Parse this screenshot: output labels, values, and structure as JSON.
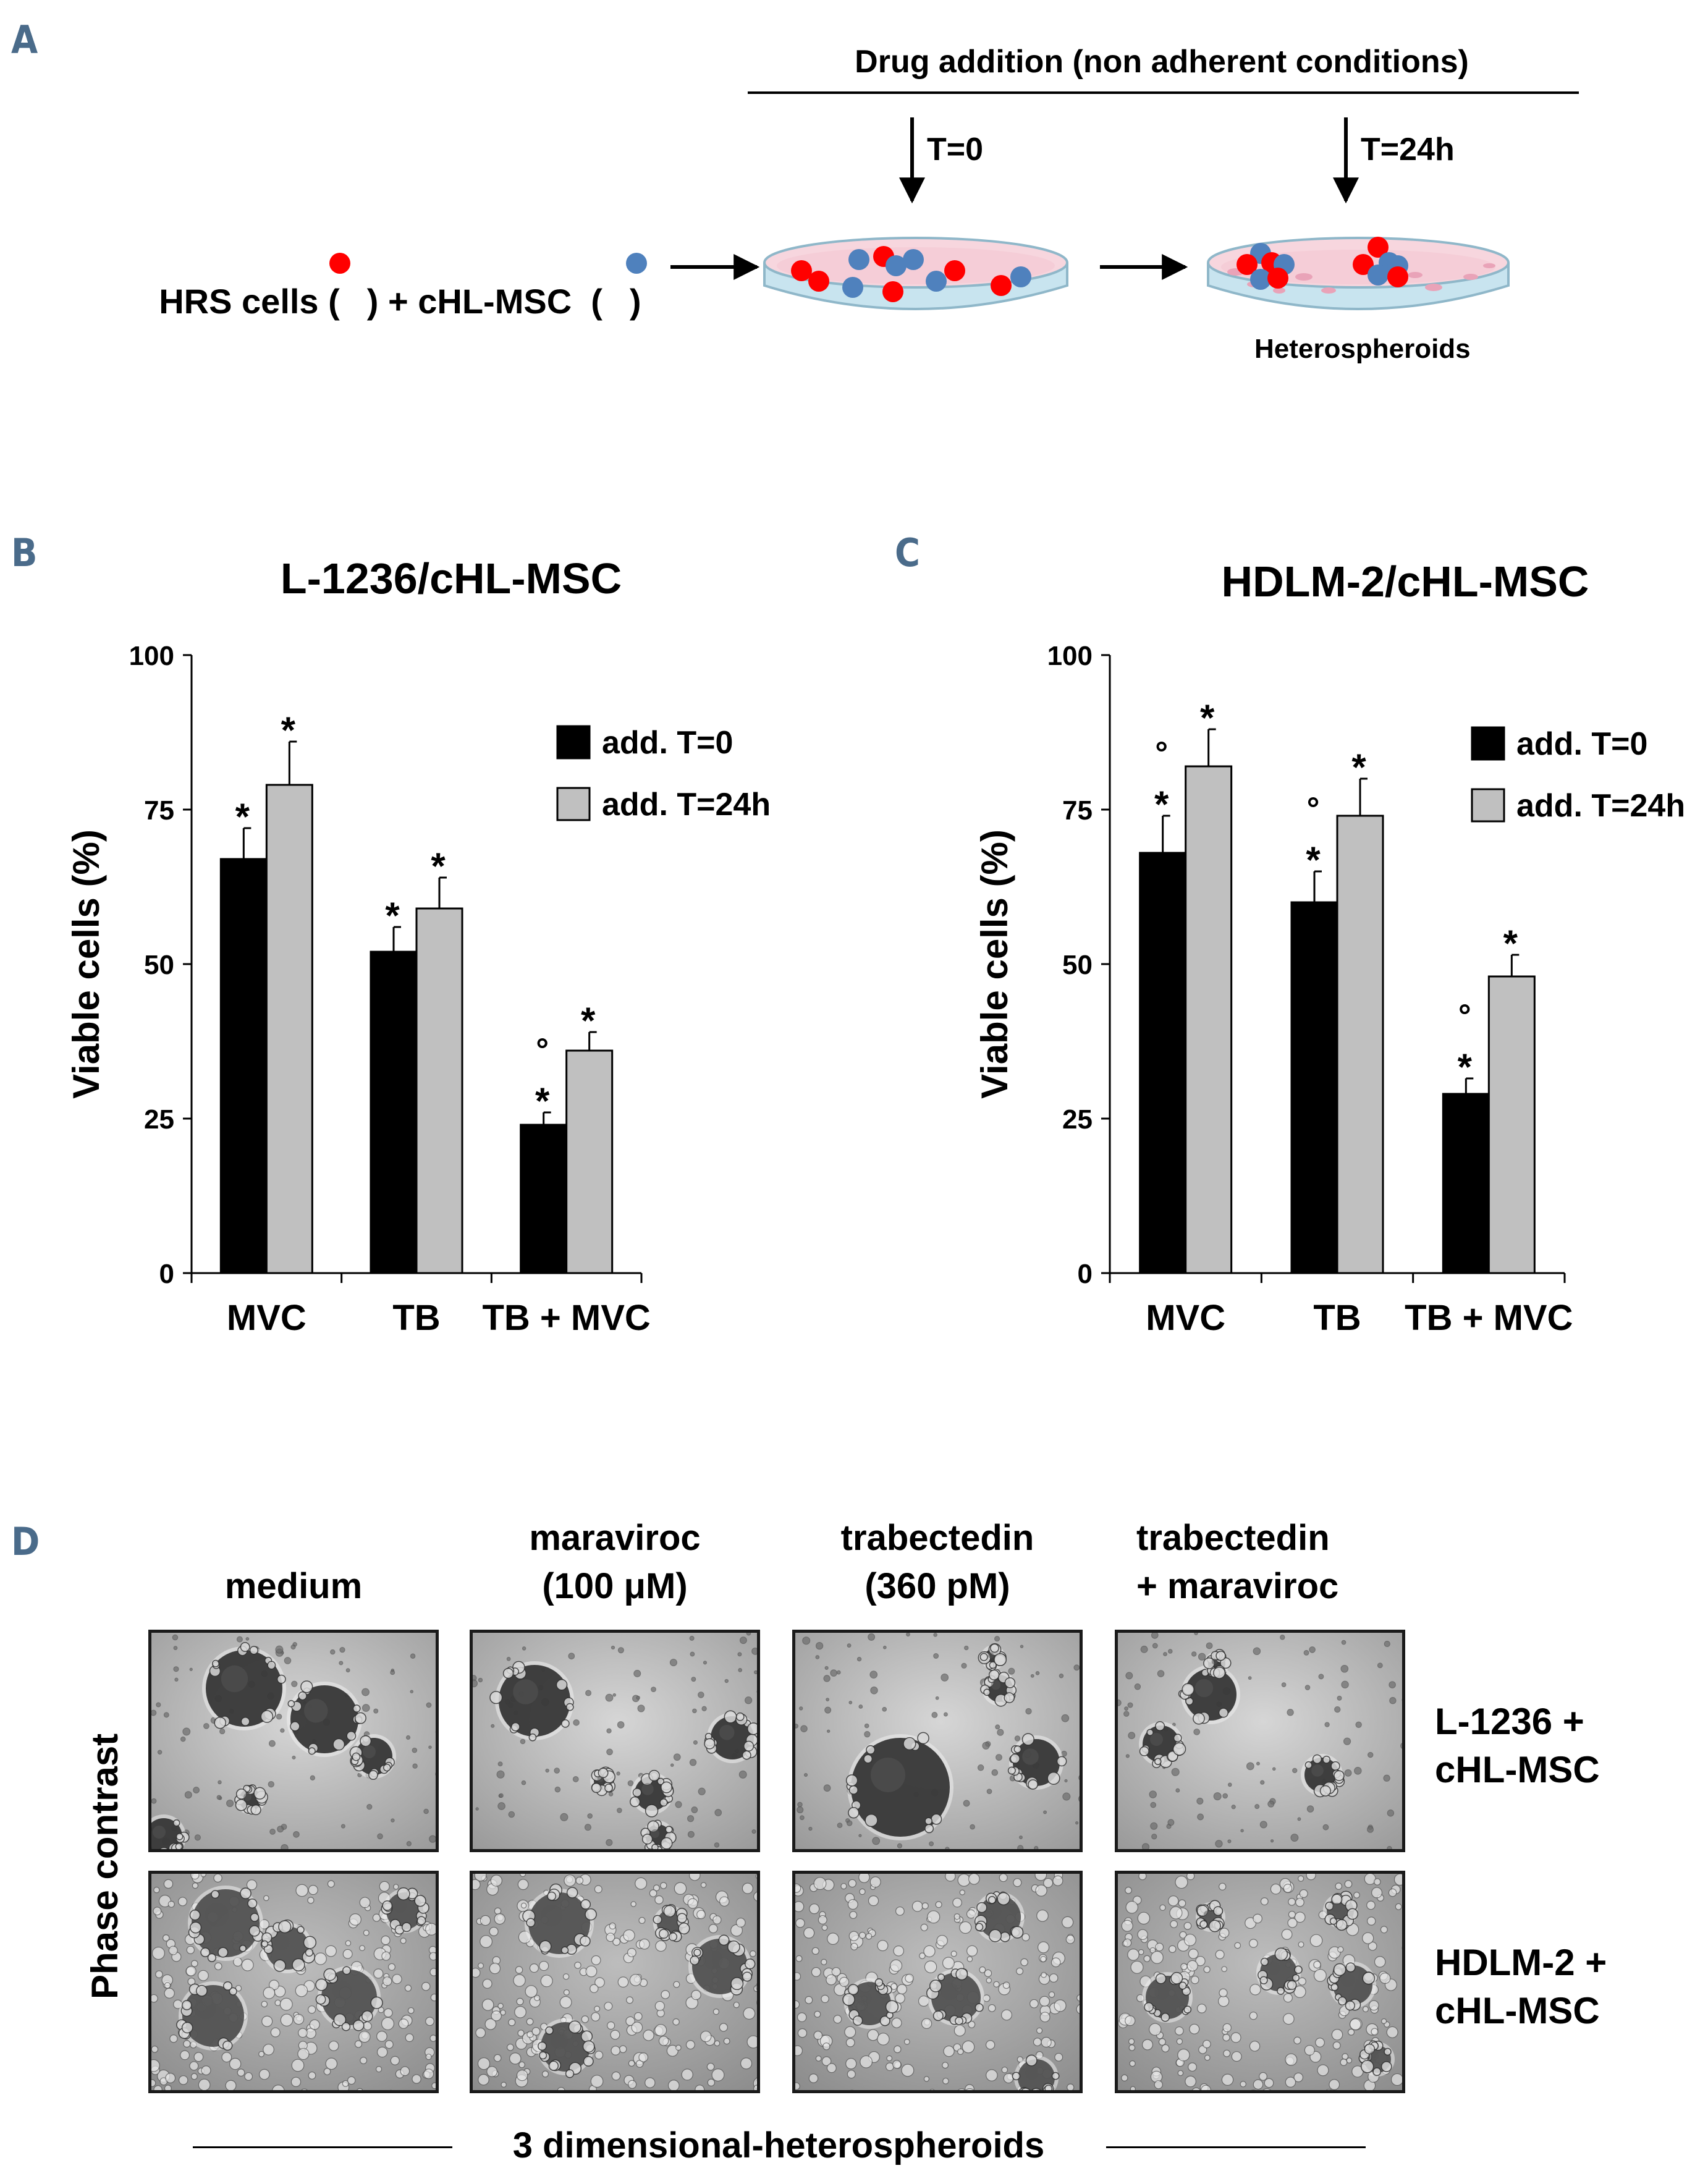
{
  "panels": {
    "a": "A",
    "b": "B",
    "c": "C",
    "d": "D"
  },
  "schematic": {
    "header": "Drug addition (non adherent conditions)",
    "t0": "T=0",
    "t24": "T=24h",
    "cells_prefix": "HRS cells (",
    "cells_mid": ") + cHL-MSC  (",
    "cells_suffix": ")",
    "heterospheroids": "Heterospheroids",
    "colors": {
      "hrs": "#ff0000",
      "msc": "#4f81bd",
      "dish": "#c8e4ef",
      "medium": "#f7d6de"
    }
  },
  "chart_data": [
    {
      "type": "bar",
      "title": "L-1236/cHL-MSC",
      "ylabel": "Viable cells (%)",
      "xlabel": "",
      "ylim": [
        0,
        100
      ],
      "yticks": [
        0,
        25,
        50,
        75,
        100
      ],
      "categories": [
        "MVC",
        "TB",
        "TB + MVC"
      ],
      "series": [
        {
          "name": "add. T=0",
          "color": "#000000",
          "values": [
            67,
            52,
            24
          ],
          "errors": [
            5,
            4,
            2
          ],
          "annotations": [
            [
              "*"
            ],
            [
              "*"
            ],
            [
              "*",
              "°"
            ]
          ]
        },
        {
          "name": "add. T=24h",
          "color": "#c0c0c0",
          "values": [
            79,
            59,
            36
          ],
          "errors": [
            7,
            5,
            3
          ],
          "annotations": [
            [
              "*"
            ],
            [
              "*"
            ],
            [
              "*"
            ]
          ]
        }
      ],
      "legend_position": "top-right"
    },
    {
      "type": "bar",
      "title": "HDLM-2/cHL-MSC",
      "ylabel": "Viable cells (%)",
      "xlabel": "",
      "ylim": [
        0,
        100
      ],
      "yticks": [
        0,
        25,
        50,
        75,
        100
      ],
      "categories": [
        "MVC",
        "TB",
        "TB + MVC"
      ],
      "series": [
        {
          "name": "add. T=0",
          "color": "#000000",
          "values": [
            68,
            60,
            29
          ],
          "errors": [
            6,
            5,
            2.5
          ],
          "annotations": [
            [
              "*",
              "°"
            ],
            [
              "*",
              "°"
            ],
            [
              "*",
              "°"
            ]
          ]
        },
        {
          "name": "add. T=24h",
          "color": "#c0c0c0",
          "values": [
            82,
            74,
            48
          ],
          "errors": [
            6,
            6,
            3.5
          ],
          "annotations": [
            [
              "*"
            ],
            [
              "*"
            ],
            [
              "*"
            ]
          ]
        }
      ],
      "legend_position": "top-right"
    }
  ],
  "micrographs": {
    "columns": [
      {
        "line1": "",
        "line2": "medium"
      },
      {
        "line1": "maraviroc",
        "line2": "(100 μM)"
      },
      {
        "line1": "trabectedin",
        "line2": "(360 pM)"
      },
      {
        "line1": "trabectedin",
        "line2": "+ maraviroc"
      }
    ],
    "rows": [
      {
        "line1": "L-1236 +",
        "line2": "cHL-MSC"
      },
      {
        "line1": "HDLM-2 +",
        "line2": "cHL-MSC"
      }
    ],
    "side_label": "Phase contrast",
    "footer": "3 dimensional-heterospheroids"
  }
}
